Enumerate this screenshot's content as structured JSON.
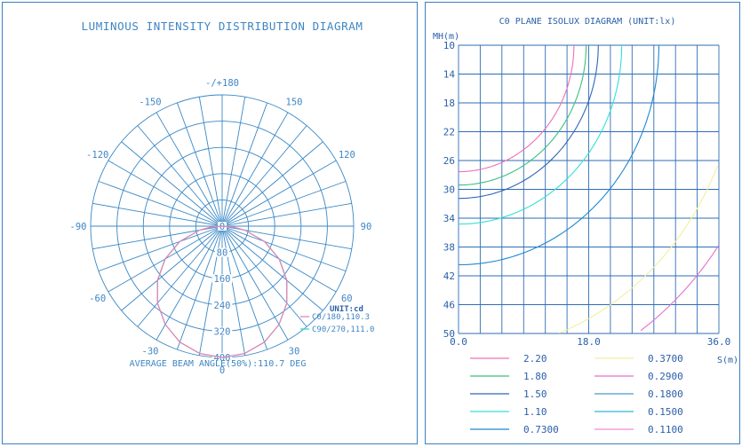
{
  "chart_data": [
    {
      "type": "polar",
      "title": "LUMINOUS INTENSITY DISTRIBUTION DIAGRAM",
      "angle_labels": [
        {
          "deg": 180,
          "label": "-/+180"
        },
        {
          "deg": 150,
          "label": "150"
        },
        {
          "deg": 120,
          "label": "120"
        },
        {
          "deg": 90,
          "label": "90"
        },
        {
          "deg": 60,
          "label": "60"
        },
        {
          "deg": 30,
          "label": "30"
        },
        {
          "deg": 0,
          "label": "0"
        },
        {
          "deg": -30,
          "label": "-30"
        },
        {
          "deg": -60,
          "label": "-60"
        },
        {
          "deg": -90,
          "label": "-90"
        },
        {
          "deg": -120,
          "label": "-120"
        },
        {
          "deg": -150,
          "label": "-150"
        }
      ],
      "radial_ticks": [
        "0",
        "80",
        "160",
        "240",
        "320",
        "400"
      ],
      "rmax": 400,
      "unit": "UNIT:cd",
      "series": [
        {
          "name": "C0/180,110.3",
          "color": "#ef7fb6",
          "peak": 110.3,
          "angles": [
            0,
            10,
            20,
            30,
            40,
            50,
            60,
            70,
            80,
            85,
            90
          ],
          "values": [
            400,
            394,
            376,
            346,
            306,
            256,
            200,
            137,
            70,
            35,
            0
          ]
        },
        {
          "name": "C90/270,111.0",
          "color": "#37d8b8",
          "peak": 111.0,
          "angles": [
            0,
            10,
            20,
            30,
            40,
            50,
            60,
            70,
            80,
            85,
            90
          ],
          "values": [
            400,
            394,
            376,
            346,
            306,
            257,
            201,
            138,
            71,
            36,
            0
          ]
        }
      ],
      "footer": "AVERAGE BEAM ANGLE(50%):110.7 DEG"
    },
    {
      "type": "contour",
      "title": "C0 PLANE ISOLUX DIAGRAM (UNIT:lx)",
      "ylabel": "MH(m)",
      "xlabel": "S(m)",
      "y_ticks": [
        "10",
        "14",
        "18",
        "22",
        "26",
        "30",
        "34",
        "38",
        "42",
        "46",
        "50"
      ],
      "ylim": [
        10,
        50
      ],
      "x_ticks": [
        "0.0",
        "18.0",
        "36.0"
      ],
      "xlim": [
        0,
        36
      ],
      "levels": [
        {
          "value": "2.20",
          "lux": 2.2,
          "color": "#ef70b6"
        },
        {
          "value": "1.80",
          "lux": 1.8,
          "color": "#3bbf7f"
        },
        {
          "value": "1.50",
          "lux": 1.5,
          "color": "#2e66b8"
        },
        {
          "value": "1.10",
          "lux": 1.1,
          "color": "#33e0d8"
        },
        {
          "value": "0.7300",
          "lux": 0.73,
          "color": "#1e88d0"
        },
        {
          "value": "0.3700",
          "lux": 0.37,
          "color": "#f2ef9e"
        },
        {
          "value": "0.2900",
          "lux": 0.29,
          "color": "#e56fd0"
        },
        {
          "value": "0.1800",
          "lux": 0.18,
          "color": "#4a9bd0"
        },
        {
          "value": "0.1500",
          "lux": 0.15,
          "color": "#2eb8d8"
        },
        {
          "value": "0.1100",
          "lux": 0.11,
          "color": "#f08ad8"
        }
      ]
    }
  ]
}
